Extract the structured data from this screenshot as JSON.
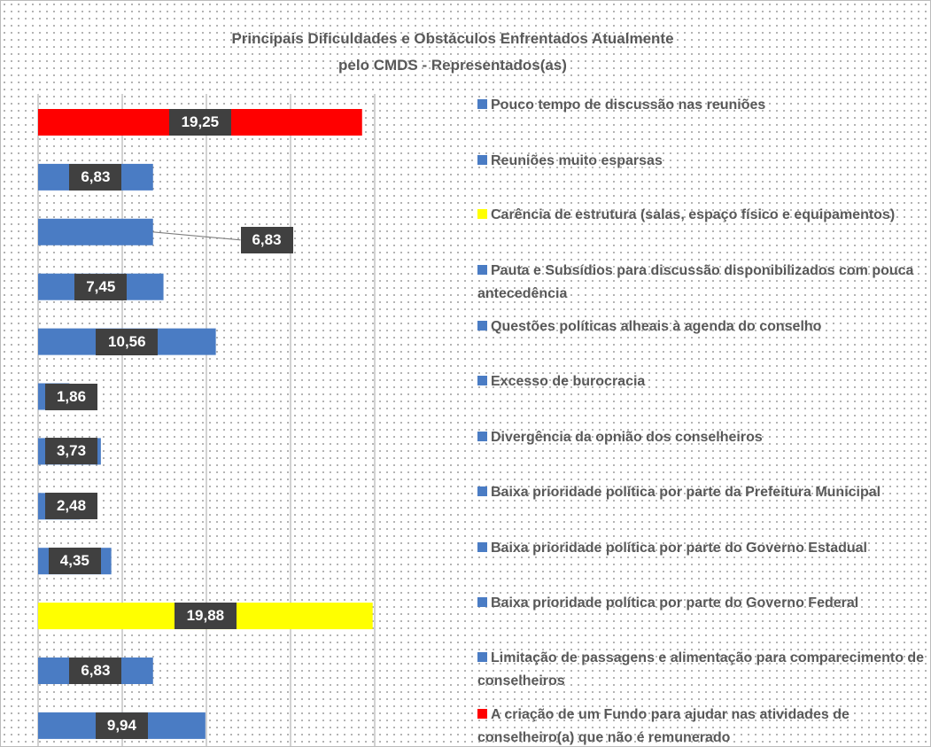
{
  "chart_data": {
    "type": "bar",
    "orientation": "horizontal",
    "title": "Principais Dificuldades e Obstáculos Enfrentados Atualmente pelo CMDS - Representados(as)",
    "categories": [
      "Pouco tempo de discussão nas reuniões",
      "Reuniões muito esparsas",
      "Carência de estrutura (salas, espaço físico e equipamentos)",
      "Pauta e Subsídios para discussão disponibilizados com pouca antecedência",
      "Questões políticas alheais à agenda do conselho",
      "Excesso de burocracia",
      "Divergência da opnião dos conselheiros",
      "Baixa prioridade política por parte da Prefeitura Municipal",
      "Baixa prioridade política por parte do Governo Estadual",
      "Baixa prioridade política por parte do Governo Federal",
      "Limitação de passagens e alimentação para comparecimento de conselheiros",
      "A criação de um Fundo para ajudar nas atividades de conselheiro(a) que não é remunerado"
    ],
    "values": [
      9.94,
      6.83,
      19.88,
      4.35,
      2.48,
      3.73,
      1.86,
      10.56,
      7.45,
      6.83,
      6.83,
      19.25
    ],
    "value_labels": [
      "9,94",
      "6,83",
      "19,88",
      "4,35",
      "2,48",
      "3,73",
      "1,86",
      "10,56",
      "7,45",
      "6,83",
      "6,83",
      "19,25"
    ],
    "colors": [
      "#4a7cc4",
      "#4a7cc4",
      "#ffff00",
      "#4a7cc4",
      "#4a7cc4",
      "#4a7cc4",
      "#4a7cc4",
      "#4a7cc4",
      "#4a7cc4",
      "#4a7cc4",
      "#4a7cc4",
      "#ff0000"
    ],
    "xlim": [
      0,
      25
    ],
    "xticks": [
      0,
      5,
      10,
      15,
      20
    ],
    "grid": true
  }
}
